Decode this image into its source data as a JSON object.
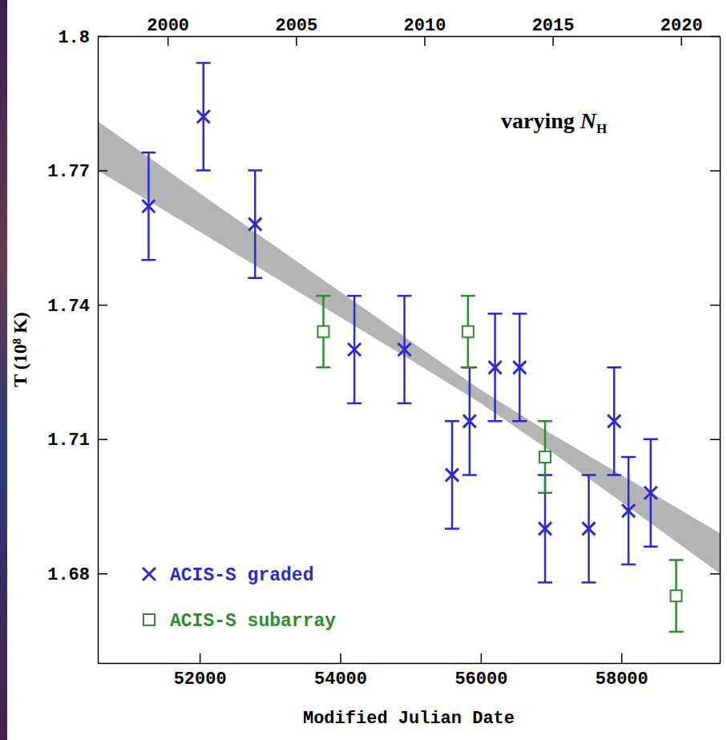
{
  "chart_data": {
    "type": "scatter",
    "xlabel": "Modified Julian Date",
    "ylabel": "T (10⁸ K)",
    "annotation": [
      "varying ",
      "N",
      "H"
    ],
    "xlim": [
      50550,
      59400
    ],
    "ylim": [
      1.66,
      1.8
    ],
    "xticks": [
      52000,
      54000,
      56000,
      58000
    ],
    "x2ticks": [
      {
        "value": 51544,
        "label": "2000"
      },
      {
        "value": 53371,
        "label": "2005"
      },
      {
        "value": 55197,
        "label": "2010"
      },
      {
        "value": 57023,
        "label": "2015"
      },
      {
        "value": 58849,
        "label": "2020"
      }
    ],
    "yticks": [
      1.68,
      1.71,
      1.74,
      1.77,
      1.8
    ],
    "legend": "lower left",
    "band": {
      "color": "#b4b4b4",
      "x": [
        50550,
        52000,
        53500,
        55000,
        56000,
        57000,
        58000,
        59400
      ],
      "lower": [
        1.77,
        1.7563,
        1.742,
        1.7277,
        1.718,
        1.7072,
        1.696,
        1.68
      ],
      "upper": [
        1.781,
        1.7649,
        1.7484,
        1.7319,
        1.721,
        1.7112,
        1.702,
        1.689
      ]
    },
    "series": [
      {
        "name": "ACIS-S graded",
        "color": "#2a2ad2",
        "marker": "x",
        "x": [
          51273,
          52053,
          52788,
          54201,
          54913,
          55591,
          55840,
          56202,
          56552,
          56914,
          57536,
          57897,
          58101,
          58417
        ],
        "values": [
          1.762,
          1.782,
          1.758,
          1.73,
          1.73,
          1.702,
          1.714,
          1.726,
          1.726,
          1.69,
          1.69,
          1.714,
          1.694,
          1.698
        ],
        "errors": [
          0.012,
          0.012,
          0.012,
          0.012,
          0.012,
          0.012,
          0.012,
          0.012,
          0.012,
          0.012,
          0.012,
          0.012,
          0.012,
          0.012
        ]
      },
      {
        "name": "ACIS-S subarray",
        "color": "#2e8b2e",
        "marker": "square",
        "x": [
          53760,
          55817,
          56914,
          58779
        ],
        "values": [
          1.734,
          1.734,
          1.706,
          1.675
        ],
        "errors": [
          0.008,
          0.008,
          0.008,
          0.008
        ]
      }
    ]
  }
}
